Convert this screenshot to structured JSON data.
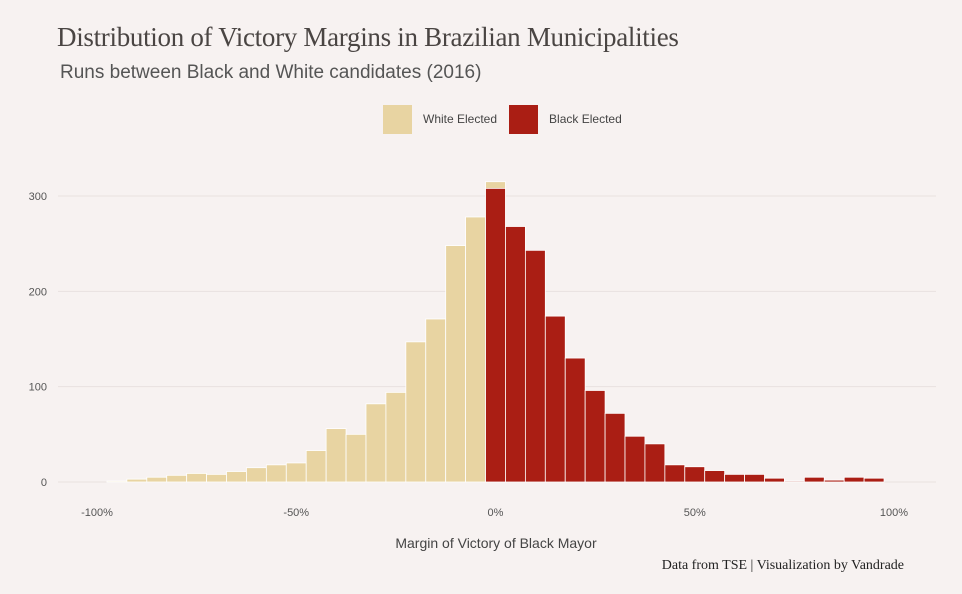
{
  "chart_data": {
    "type": "bar",
    "title": "Distribution of Victory Margins in Brazilian Municipalities",
    "subtitle": "Runs between Black and White candidates (2016)",
    "xlabel": "Margin of Victory of Black Mayor",
    "ylabel": "",
    "caption": "Data from TSE | Visualization by Vandrade",
    "bin_width": 5,
    "x_ticks": [
      -100,
      -50,
      0,
      50,
      100
    ],
    "x_tick_labels": [
      "-100%",
      "-50%",
      "0%",
      "50%",
      "100%"
    ],
    "y_ticks": [
      0,
      100,
      200,
      300
    ],
    "y_tick_labels": [
      "0",
      "100",
      "200",
      "300"
    ],
    "xlim": [
      -100,
      100
    ],
    "ylim": [
      0,
      330
    ],
    "grid": true,
    "legend_position": "top",
    "series": [
      {
        "name": "White Elected",
        "color": "#e8d4a2",
        "x": [
          -95,
          -90,
          -85,
          -80,
          -75,
          -70,
          -65,
          -60,
          -55,
          -50,
          -45,
          -40,
          -35,
          -30,
          -25,
          -20,
          -15,
          -10,
          -5,
          0
        ],
        "values": [
          1,
          3,
          5,
          7,
          9,
          8,
          11,
          15,
          18,
          20,
          33,
          56,
          50,
          82,
          94,
          147,
          171,
          248,
          278,
          315
        ]
      },
      {
        "name": "Black Elected",
        "color": "#aa1e14",
        "x": [
          0,
          5,
          10,
          15,
          20,
          25,
          30,
          35,
          40,
          45,
          50,
          55,
          60,
          65,
          70,
          75,
          80,
          85,
          90,
          95
        ],
        "values": [
          308,
          268,
          243,
          174,
          130,
          96,
          72,
          48,
          40,
          18,
          16,
          12,
          8,
          8,
          4,
          1,
          5,
          2,
          5,
          4
        ]
      }
    ]
  }
}
